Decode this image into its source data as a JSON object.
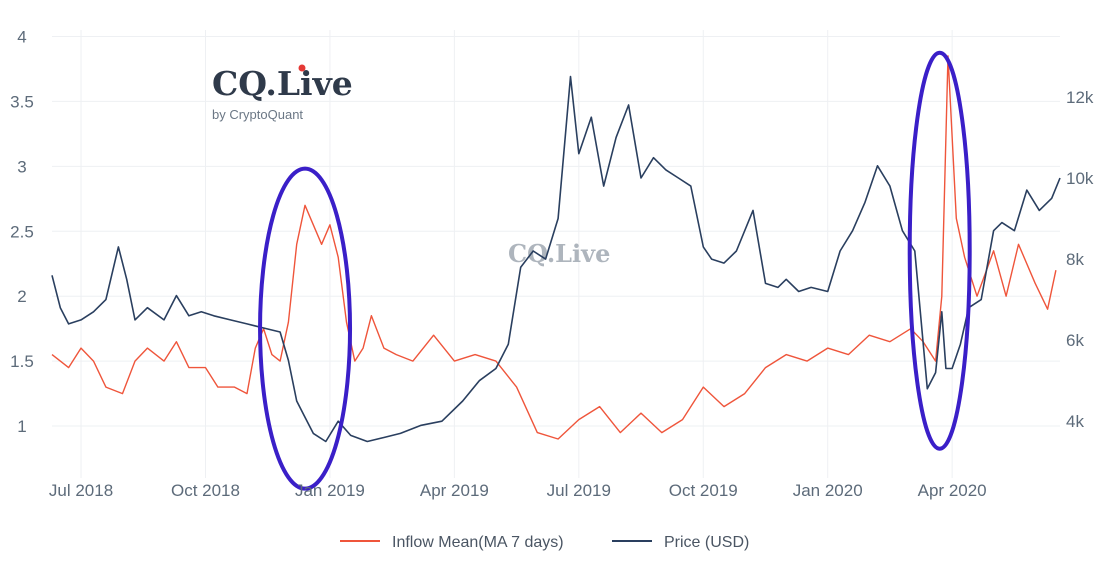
{
  "chart_data": {
    "type": "line",
    "title": "",
    "xlabel": "",
    "ylabel": "",
    "y2label": "",
    "x_tick_labels": [
      "Jul 2018",
      "Oct 2018",
      "Jan 2019",
      "Apr 2019",
      "Jul 2019",
      "Oct 2019",
      "Jan 2020",
      "Apr 2020"
    ],
    "x_tick_months": [
      0,
      3,
      6,
      9,
      12,
      15,
      18,
      21
    ],
    "x_range_months": [
      -0.7,
      23.6
    ],
    "ylim": [
      0.6,
      4.05
    ],
    "y_ticks": [
      1,
      1.5,
      2,
      2.5,
      3,
      3.5,
      4
    ],
    "y_tick_labels": [
      "1",
      "1.5",
      "2",
      "2.5",
      "3",
      "3.5",
      "4"
    ],
    "y2lim": [
      2600,
      13650
    ],
    "y2_ticks": [
      4000,
      6000,
      8000,
      10000,
      12000
    ],
    "y2_tick_labels": [
      "4k",
      "6k",
      "8k",
      "10k",
      "12k"
    ],
    "grid": true,
    "legend_position": "bottom-center",
    "series": [
      {
        "name": "Inflow Mean(MA 7 days)",
        "axis": "left",
        "color": "#ef553b",
        "x_months": [
          -0.7,
          -0.3,
          0,
          0.3,
          0.6,
          1,
          1.3,
          1.6,
          2,
          2.3,
          2.6,
          3,
          3.3,
          3.7,
          4,
          4.2,
          4.4,
          4.6,
          4.8,
          5,
          5.2,
          5.4,
          5.6,
          5.8,
          6,
          6.2,
          6.4,
          6.6,
          6.8,
          7,
          7.3,
          7.6,
          8,
          8.5,
          9,
          9.5,
          10,
          10.5,
          11,
          11.5,
          12,
          12.5,
          13,
          13.5,
          14,
          14.5,
          15,
          15.5,
          16,
          16.5,
          17,
          17.5,
          18,
          18.5,
          19,
          19.5,
          20,
          20.3,
          20.6,
          20.75,
          20.9,
          21.1,
          21.3,
          21.6,
          22,
          22.3,
          22.6,
          23,
          23.3,
          23.5
        ],
        "values": [
          1.55,
          1.45,
          1.6,
          1.5,
          1.3,
          1.25,
          1.5,
          1.6,
          1.5,
          1.65,
          1.45,
          1.45,
          1.3,
          1.3,
          1.25,
          1.6,
          1.75,
          1.55,
          1.5,
          1.8,
          2.4,
          2.7,
          2.55,
          2.4,
          2.55,
          2.3,
          1.8,
          1.5,
          1.6,
          1.85,
          1.6,
          1.55,
          1.5,
          1.7,
          1.5,
          1.55,
          1.5,
          1.3,
          0.95,
          0.9,
          1.05,
          1.15,
          0.95,
          1.1,
          0.95,
          1.05,
          1.3,
          1.15,
          1.25,
          1.45,
          1.55,
          1.5,
          1.6,
          1.55,
          1.7,
          1.65,
          1.75,
          1.65,
          1.5,
          2.0,
          3.85,
          2.6,
          2.3,
          2.0,
          2.35,
          2.0,
          2.4,
          2.1,
          1.9,
          2.2
        ]
      },
      {
        "name": "Price (USD)",
        "axis": "right",
        "color": "#2a3f5f",
        "x_months": [
          -0.7,
          -0.5,
          -0.3,
          0,
          0.3,
          0.6,
          0.9,
          1.1,
          1.3,
          1.6,
          2,
          2.3,
          2.6,
          2.9,
          3.2,
          3.6,
          4,
          4.4,
          4.8,
          5,
          5.2,
          5.4,
          5.6,
          5.9,
          6.2,
          6.5,
          6.9,
          7.3,
          7.7,
          8.2,
          8.7,
          9.2,
          9.6,
          10,
          10.3,
          10.6,
          10.9,
          11.2,
          11.5,
          11.8,
          12,
          12.3,
          12.6,
          12.9,
          13.2,
          13.5,
          13.8,
          14.1,
          14.4,
          14.7,
          15,
          15.2,
          15.5,
          15.8,
          16.2,
          16.5,
          16.8,
          17,
          17.3,
          17.6,
          18,
          18.3,
          18.6,
          18.9,
          19.2,
          19.5,
          19.8,
          20.1,
          20.4,
          20.6,
          20.75,
          20.85,
          21,
          21.2,
          21.4,
          21.7,
          22,
          22.2,
          22.5,
          22.8,
          23.1,
          23.4,
          23.6
        ],
        "values": [
          7600,
          6800,
          6400,
          6500,
          6700,
          7000,
          8300,
          7500,
          6500,
          6800,
          6500,
          7100,
          6600,
          6700,
          6600,
          6500,
          6400,
          6300,
          6200,
          5500,
          4500,
          4100,
          3700,
          3500,
          4000,
          3650,
          3500,
          3600,
          3700,
          3900,
          4000,
          4500,
          5000,
          5300,
          5900,
          7800,
          8200,
          8000,
          9000,
          12500,
          10600,
          11500,
          9800,
          11000,
          11800,
          10000,
          10500,
          10200,
          10000,
          9800,
          8300,
          8000,
          7900,
          8200,
          9200,
          7400,
          7300,
          7500,
          7200,
          7300,
          7200,
          8200,
          8700,
          9400,
          10300,
          9800,
          8700,
          8200,
          4800,
          5200,
          6700,
          5300,
          5300,
          5900,
          6800,
          7000,
          8700,
          8900,
          8700,
          9700,
          9200,
          9500,
          10000
        ]
      }
    ],
    "annotations": [
      "ellipse around Dec 2018 inflow spike",
      "ellipse around Mar 2020 inflow spike"
    ]
  },
  "branding": {
    "logo_text": "CQ.Live",
    "logo_sub": "by CryptoQuant",
    "watermark_text": "CQ.Live",
    "accent_dot_color": "#e53935"
  },
  "annotation_color": "#3a1fc8"
}
